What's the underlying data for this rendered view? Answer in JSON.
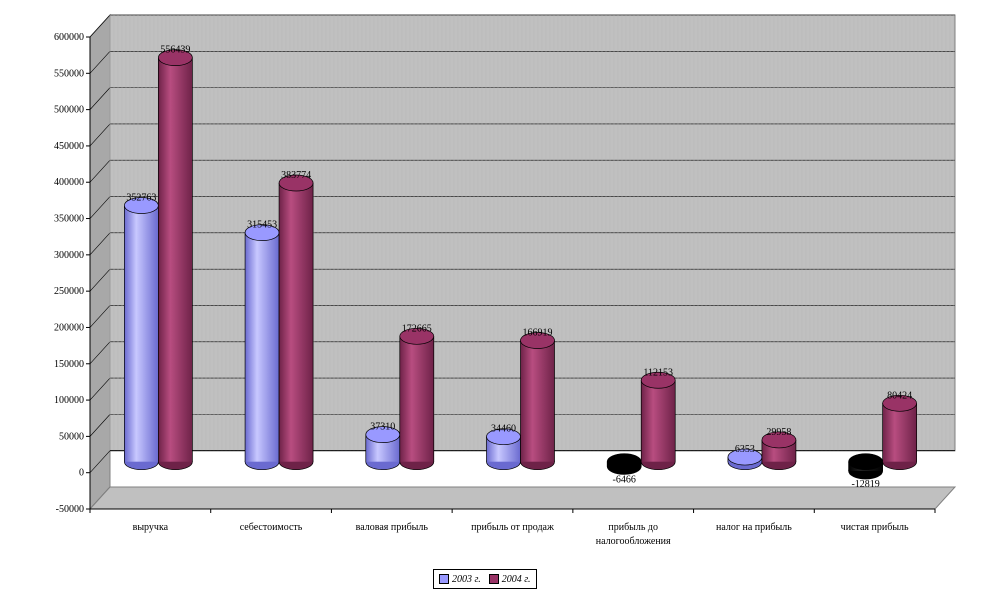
{
  "chart_data": {
    "type": "bar",
    "categories": [
      "выручка",
      "себестоимость",
      "валовая прибыль",
      "прибыль от продаж",
      "прибыль до налогообложения",
      "налог на прибыль",
      "чистая прибыль"
    ],
    "category_lines": [
      [
        "выручка"
      ],
      [
        "себестоимость"
      ],
      [
        "валовая прибыль"
      ],
      [
        "прибыль от продаж"
      ],
      [
        "прибыль до",
        "налогообложения"
      ],
      [
        "налог на прибыль"
      ],
      [
        "чистая прибыль"
      ]
    ],
    "series": [
      {
        "name": "2003 г.",
        "values": [
          352763,
          315453,
          37310,
          34460,
          -6466,
          6353,
          -12819
        ],
        "data_labels": [
          "352763",
          "315453",
          "37310",
          "34460",
          "-6466",
          "6353",
          "-12819"
        ],
        "color": "#9999ff",
        "dark": "#6a6ad0",
        "light": "#c8c8ff",
        "negative_color": "#000000"
      },
      {
        "name": "2004 г.",
        "values": [
          556439,
          383774,
          172665,
          166919,
          112153,
          29958,
          80424
        ],
        "data_labels": [
          "556439",
          "383774",
          "172665",
          "166919",
          "112153",
          "29958",
          "80424"
        ],
        "color": "#993366",
        "dark": "#6e2248",
        "light": "#b84d80",
        "negative_color": "#000000"
      }
    ],
    "y_ticks": [
      "600000",
      "550000",
      "500000",
      "450000",
      "400000",
      "350000",
      "300000",
      "250000",
      "200000",
      "150000",
      "100000",
      "50000",
      "0",
      "-50000"
    ],
    "ylim": [
      -50000,
      600000
    ],
    "grid": true,
    "legend_position": "bottom",
    "wall_color": "#c0c0c0",
    "floor_color": "#c0c0c0",
    "title": "",
    "xlabel": "",
    "ylabel": ""
  }
}
